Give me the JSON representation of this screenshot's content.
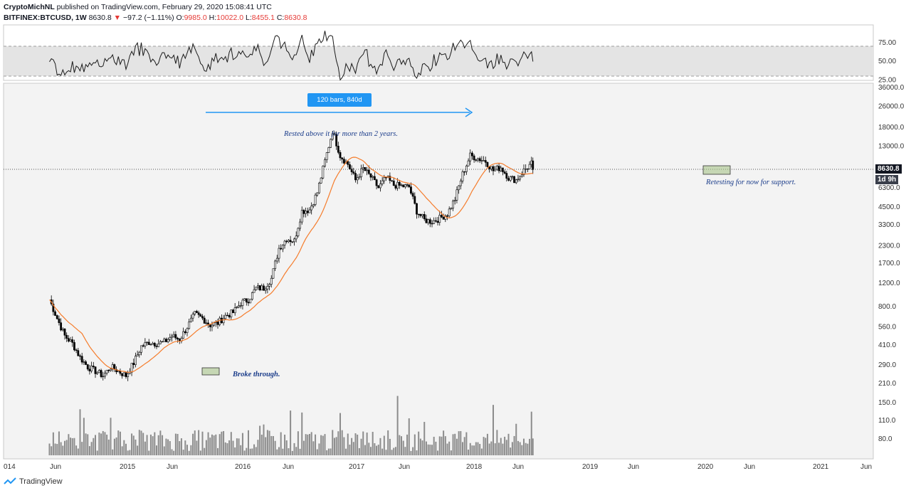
{
  "header": {
    "author": "CryptoMichNL",
    "published": "published on TradingView.com, February 29, 2020 15:08:41 UTC",
    "symbol": "BITFINEX:BTCUSD, 1W",
    "last": "8630.8",
    "change": "−97.2 (−1.11%)",
    "o_label": "O:",
    "o": "9985.0",
    "h_label": "H:",
    "h": "10022.0",
    "l_label": "L:",
    "l": "8455.1",
    "c_label": "C:",
    "c": "8630.8"
  },
  "footer": {
    "brand": "TradingView"
  },
  "price_badge": {
    "value": "8630.8",
    "countdown": "1d 9h"
  },
  "colors": {
    "up": "#ffffff",
    "down": "#000000",
    "ma": "#f57c2b",
    "arrow": "#2196f3",
    "annotation": "#1a3c8a"
  },
  "chart_data": {
    "type": "candlestick",
    "scale": "log",
    "y_ticks": [
      "36000.0",
      "26000.0",
      "18000.0",
      "13000.0",
      "8630.8",
      "6300.0",
      "4500.0",
      "3300.0",
      "2300.0",
      "1700.0",
      "1200.0",
      "800.0",
      "560.0",
      "410.0",
      "290.0",
      "210.0",
      "150.0",
      "110.0",
      "80.0"
    ],
    "y_tick_values": [
      36000,
      26000,
      18000,
      13000,
      8630.8,
      6300,
      4500,
      3300,
      2300,
      1700,
      1200,
      800,
      560,
      410,
      290,
      210,
      150,
      110,
      80
    ],
    "x_ticks": [
      "014",
      "Jun",
      "2015",
      "Jun",
      "2016",
      "Jun",
      "2017",
      "Jun",
      "2018",
      "Jun",
      "2019",
      "Jun",
      "2020",
      "Jun",
      "2021",
      "Jun"
    ],
    "price_path": [
      [
        "2014-11",
        900
      ],
      [
        "2014-12",
        650
      ],
      [
        "2015-01",
        480
      ],
      [
        "2015-02",
        420
      ],
      [
        "2015-03",
        330
      ],
      [
        "2015-04",
        280
      ],
      [
        "2015-05",
        260
      ],
      [
        "2015-06",
        240
      ],
      [
        "2015-07",
        280
      ],
      [
        "2015-08",
        260
      ],
      [
        "2015-09",
        240
      ],
      [
        "2015-10",
        300
      ],
      [
        "2015-11",
        400
      ],
      [
        "2015-12",
        430
      ],
      [
        "2016-01",
        420
      ],
      [
        "2016-02",
        430
      ],
      [
        "2016-03",
        480
      ],
      [
        "2016-04",
        450
      ],
      [
        "2016-05",
        560
      ],
      [
        "2016-06",
        700
      ],
      [
        "2016-07",
        650
      ],
      [
        "2016-08",
        580
      ],
      [
        "2016-09",
        600
      ],
      [
        "2016-10",
        680
      ],
      [
        "2016-11",
        720
      ],
      [
        "2016-12",
        850
      ],
      [
        "2017-01",
        900
      ],
      [
        "2017-02",
        1100
      ],
      [
        "2017-03",
        1100
      ],
      [
        "2017-04",
        1300
      ],
      [
        "2017-05",
        2200
      ],
      [
        "2017-06",
        2600
      ],
      [
        "2017-07",
        2500
      ],
      [
        "2017-08",
        4200
      ],
      [
        "2017-09",
        4300
      ],
      [
        "2017-10",
        5800
      ],
      [
        "2017-11",
        10000
      ],
      [
        "2017-12",
        17000
      ],
      [
        "2018-01",
        11000
      ],
      [
        "2018-02",
        9500
      ],
      [
        "2018-03",
        7200
      ],
      [
        "2018-04",
        8800
      ],
      [
        "2018-05",
        7600
      ],
      [
        "2018-06",
        6300
      ],
      [
        "2018-07",
        7500
      ],
      [
        "2018-08",
        6600
      ],
      [
        "2018-09",
        6500
      ],
      [
        "2018-10",
        6400
      ],
      [
        "2018-11",
        4200
      ],
      [
        "2018-12",
        3600
      ],
      [
        "2019-01",
        3500
      ],
      [
        "2019-02",
        3700
      ],
      [
        "2019-03",
        4000
      ],
      [
        "2019-04",
        5200
      ],
      [
        "2019-05",
        8000
      ],
      [
        "2019-06",
        11000
      ],
      [
        "2019-07",
        10500
      ],
      [
        "2019-08",
        10000
      ],
      [
        "2019-09",
        8500
      ],
      [
        "2019-10",
        9000
      ],
      [
        "2019-11",
        7500
      ],
      [
        "2019-12",
        7200
      ],
      [
        "2020-01",
        8500
      ],
      [
        "2020-02",
        9600
      ],
      [
        "2020-02",
        8630.8
      ]
    ],
    "annotations": {
      "measure_label": "120 bars, 840d",
      "rested": "Rested above it for more than 2 years.",
      "broke": "Broke through.",
      "retest": "Retesting for now for support."
    },
    "rsi": {
      "y_ticks": [
        "75.00",
        "50.00",
        "25.00"
      ],
      "y_tick_values": [
        75,
        50,
        25
      ],
      "band": [
        30,
        70
      ]
    }
  }
}
